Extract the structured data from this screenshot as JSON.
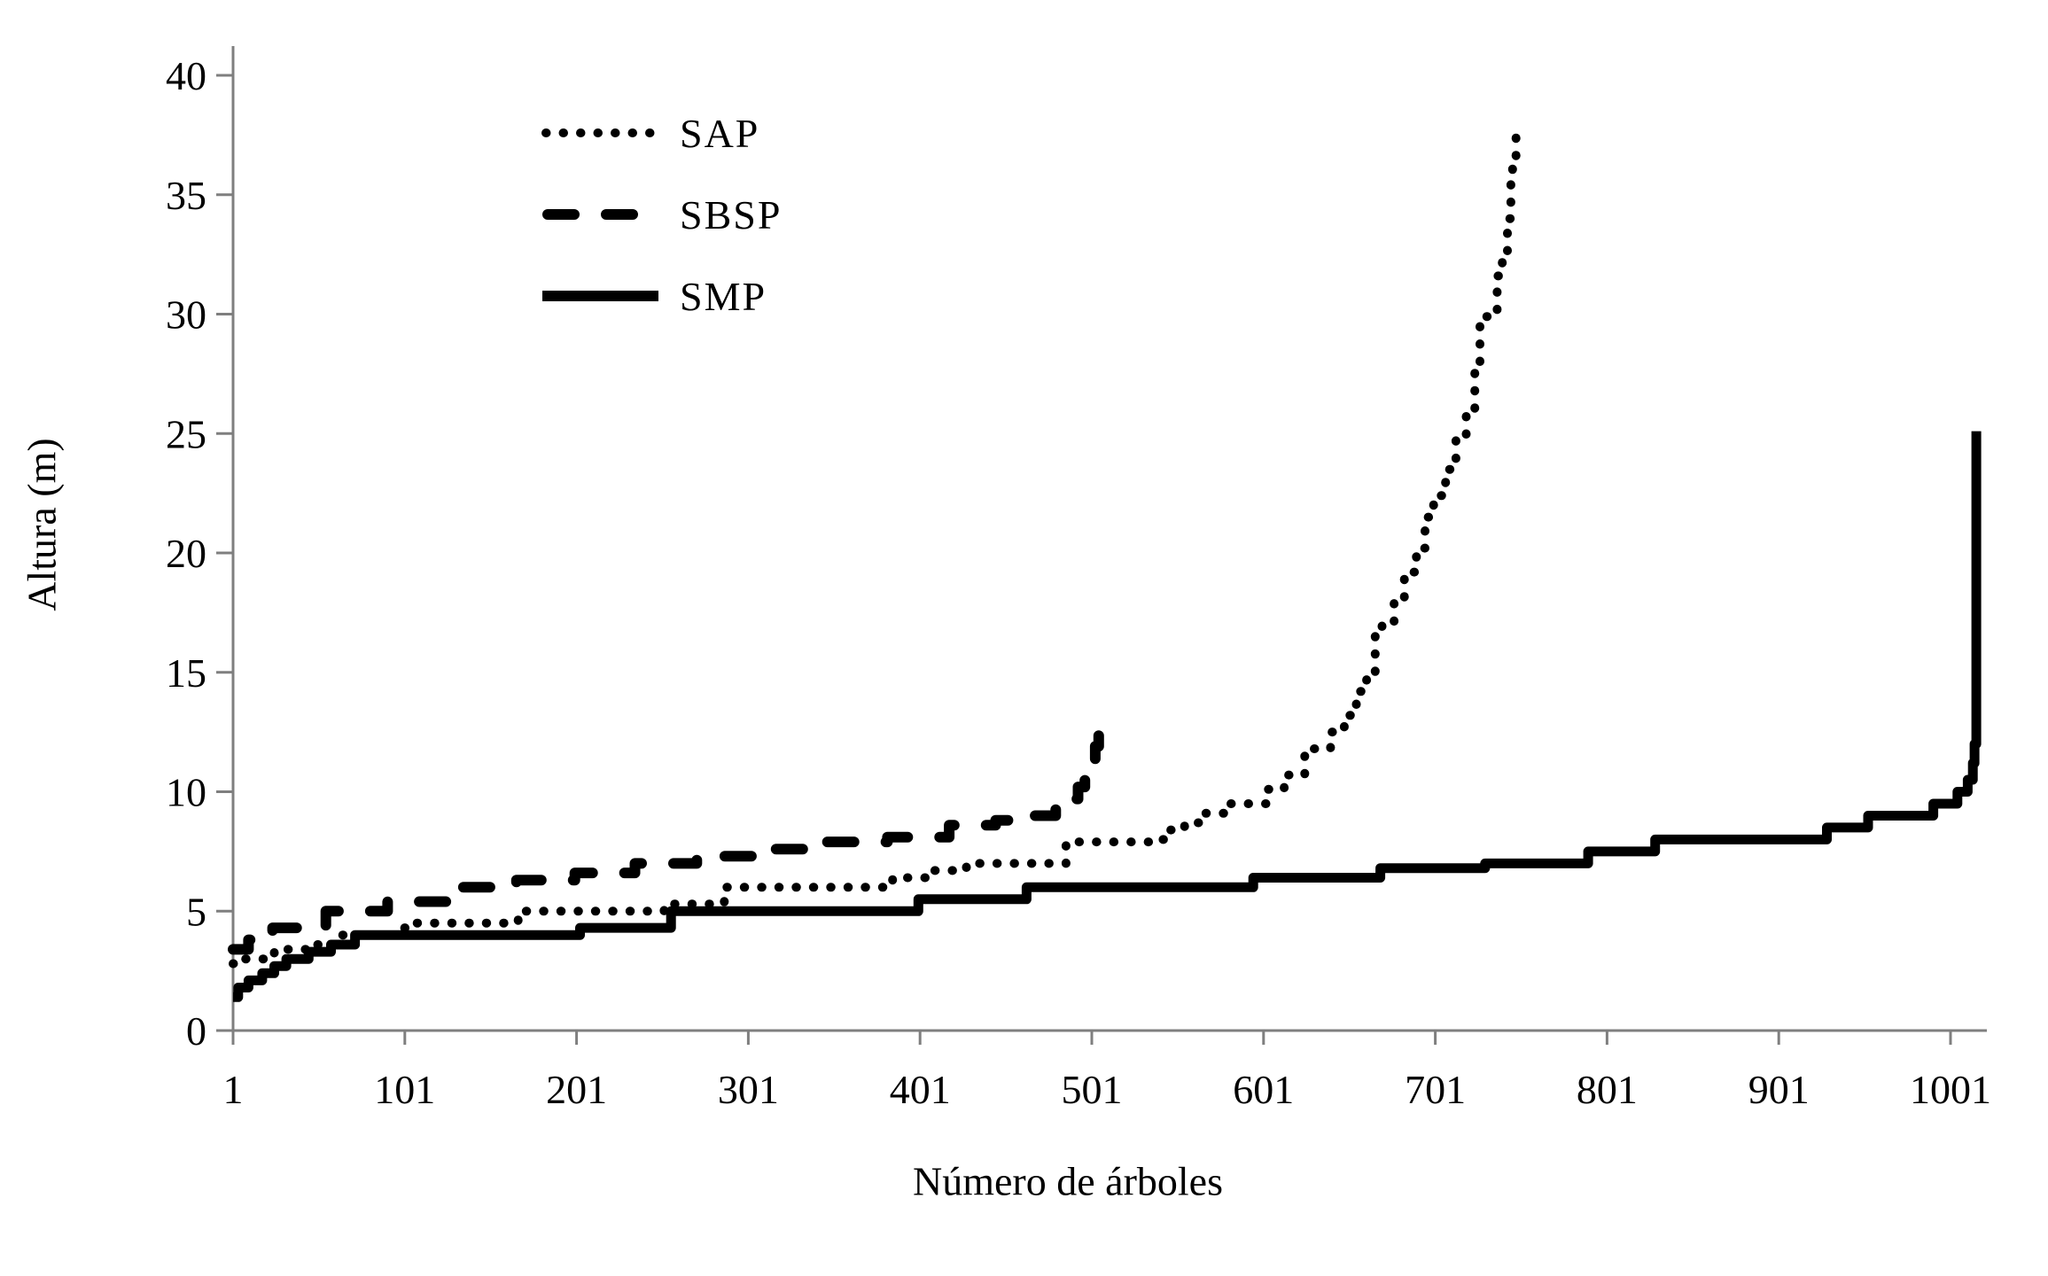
{
  "chart_data": {
    "type": "line",
    "title": "",
    "xlabel": "Número de árboles",
    "ylabel": "Altura (m)",
    "x_ticks": [
      1,
      101,
      201,
      301,
      401,
      501,
      601,
      701,
      801,
      901,
      1001
    ],
    "y_ticks": [
      0,
      5,
      10,
      15,
      20,
      25,
      30,
      35,
      40
    ],
    "xlim": [
      1,
      1022
    ],
    "ylim": [
      0,
      40
    ],
    "grid": false,
    "legend_position": "upper-left-inside",
    "colors": {
      "line": "#000000",
      "axis": "#7f7f7f",
      "text": "#000000",
      "background": "#ffffff"
    },
    "series": [
      {
        "name": "SAP",
        "style": "dotted",
        "points": [
          [
            1,
            2.8
          ],
          [
            8,
            3.0
          ],
          [
            25,
            3.4
          ],
          [
            50,
            3.6
          ],
          [
            62,
            4.0
          ],
          [
            100,
            4.3
          ],
          [
            108,
            4.5
          ],
          [
            167,
            5.0
          ],
          [
            252,
            5.3
          ],
          [
            287,
            6.0
          ],
          [
            385,
            6.4
          ],
          [
            406,
            6.7
          ],
          [
            428,
            7.0
          ],
          [
            486,
            7.9
          ],
          [
            538,
            8.0
          ],
          [
            545,
            8.4
          ],
          [
            555,
            8.7
          ],
          [
            565,
            9.1
          ],
          [
            580,
            9.5
          ],
          [
            603,
            10.1
          ],
          [
            613,
            10.7
          ],
          [
            625,
            11.8
          ],
          [
            640,
            12.5
          ],
          [
            648,
            13.2
          ],
          [
            655,
            14.2
          ],
          [
            661,
            15.0
          ],
          [
            666,
            16.5
          ],
          [
            670,
            17.1
          ],
          [
            677,
            18.0
          ],
          [
            683,
            19.2
          ],
          [
            690,
            20.2
          ],
          [
            695,
            21.5
          ],
          [
            700,
            22.4
          ],
          [
            707,
            23.5
          ],
          [
            713,
            24.7
          ],
          [
            719,
            26.0
          ],
          [
            724,
            28.0
          ],
          [
            727,
            29.9
          ],
          [
            734,
            30.1
          ],
          [
            737,
            31.6
          ],
          [
            740,
            32.5
          ],
          [
            743,
            34.0
          ],
          [
            745,
            35.5
          ],
          [
            746,
            36.5
          ],
          [
            748,
            37.9
          ]
        ]
      },
      {
        "name": "SBSP",
        "style": "dashed",
        "points": [
          [
            1,
            3.4
          ],
          [
            10,
            3.8
          ],
          [
            24,
            4.3
          ],
          [
            55,
            5.0
          ],
          [
            91,
            5.4
          ],
          [
            128,
            6.0
          ],
          [
            166,
            6.3
          ],
          [
            200,
            6.6
          ],
          [
            235,
            7.0
          ],
          [
            271,
            7.3
          ],
          [
            308,
            7.6
          ],
          [
            344,
            7.9
          ],
          [
            382,
            8.1
          ],
          [
            418,
            8.6
          ],
          [
            445,
            8.8
          ],
          [
            455,
            9.0
          ],
          [
            480,
            9.3
          ],
          [
            488,
            9.7
          ],
          [
            493,
            10.2
          ],
          [
            497,
            10.8
          ],
          [
            500,
            11.3
          ],
          [
            503,
            11.9
          ],
          [
            505,
            12.4
          ],
          [
            507,
            12.9
          ]
        ]
      },
      {
        "name": "SMP",
        "style": "solid",
        "points": [
          [
            1,
            1.4
          ],
          [
            4,
            1.8
          ],
          [
            10,
            2.1
          ],
          [
            18,
            2.4
          ],
          [
            25,
            2.7
          ],
          [
            32,
            3.0
          ],
          [
            45,
            3.3
          ],
          [
            58,
            3.6
          ],
          [
            72,
            4.0
          ],
          [
            203,
            4.3
          ],
          [
            256,
            5.0
          ],
          [
            400,
            5.5
          ],
          [
            463,
            6.0
          ],
          [
            595,
            6.4
          ],
          [
            669,
            6.8
          ],
          [
            730,
            7.0
          ],
          [
            790,
            7.5
          ],
          [
            829,
            8.0
          ],
          [
            929,
            8.5
          ],
          [
            953,
            9.0
          ],
          [
            991,
            9.5
          ],
          [
            1005,
            10.0
          ],
          [
            1011,
            10.5
          ],
          [
            1014,
            11.2
          ],
          [
            1015,
            12.0
          ],
          [
            1016,
            25.1
          ]
        ]
      }
    ]
  },
  "legend": {
    "items": [
      {
        "label": "SAP"
      },
      {
        "label": "SBSP"
      },
      {
        "label": "SMP"
      }
    ]
  }
}
